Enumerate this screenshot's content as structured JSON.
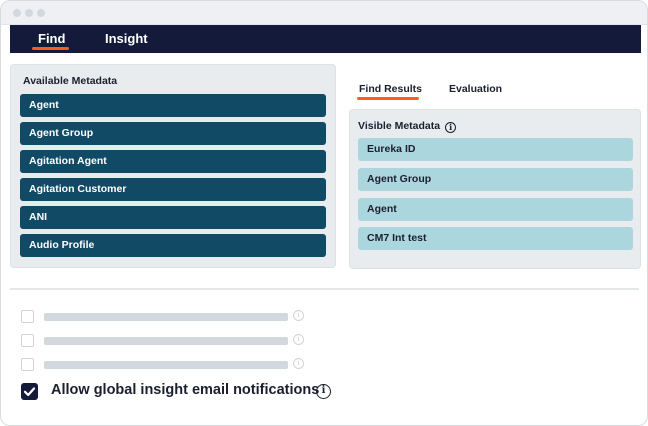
{
  "nav": {
    "tabs": [
      {
        "label": "Find",
        "active": true
      },
      {
        "label": "Insight",
        "active": false
      }
    ]
  },
  "available_metadata": {
    "title": "Available Metadata",
    "items": [
      "Agent",
      "Agent Group",
      "Agitation Agent",
      "Agitation Customer",
      "ANI",
      "Audio Profile"
    ]
  },
  "results": {
    "tabs": [
      {
        "label": "Find Results",
        "active": true
      },
      {
        "label": "Evaluation",
        "active": false
      }
    ],
    "visible_metadata": {
      "title": "Visible Metadata",
      "items": [
        "Eureka ID",
        "Agent Group",
        "Agent",
        "CM7 Int test"
      ]
    }
  },
  "settings": {
    "placeholder_rows": 3,
    "global_insight": {
      "label": "Allow global insight email notifications",
      "checked": true
    }
  },
  "icons": {
    "info": "info-icon",
    "check": "check-icon"
  },
  "colors": {
    "nav_bg": "#141b3a",
    "accent": "#ff5a1f",
    "metadata_button": "#114a65",
    "visible_button": "#acd6de",
    "panel_bg": "#e8ecef"
  }
}
